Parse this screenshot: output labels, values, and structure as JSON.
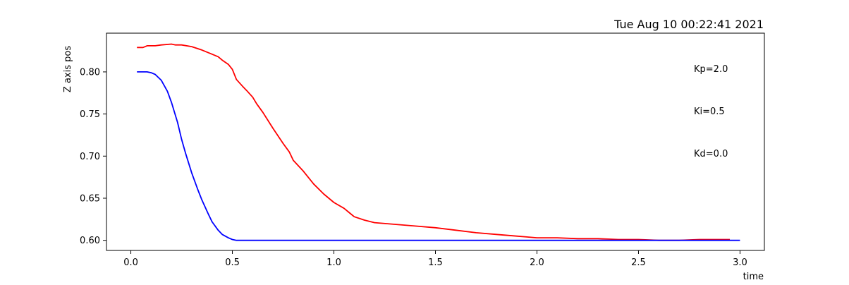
{
  "chart_data": {
    "type": "line",
    "title": "Tue Aug 10 00:22:41 2021",
    "xlabel": "time",
    "ylabel": "Z axis pos",
    "xlim": [
      -0.12,
      3.12
    ],
    "ylim": [
      0.588,
      0.846
    ],
    "x_ticks": [
      0.0,
      0.5,
      1.0,
      1.5,
      2.0,
      2.5,
      3.0
    ],
    "x_tick_labels": [
      "0.0",
      "0.5",
      "1.0",
      "1.5",
      "2.0",
      "2.5",
      "3.0"
    ],
    "y_ticks": [
      0.6,
      0.65,
      0.7,
      0.75,
      0.8
    ],
    "y_tick_labels": [
      "0.60",
      "0.65",
      "0.70",
      "0.75",
      "0.80"
    ],
    "grid": false,
    "annotations": [
      "Kp=2.0",
      "Ki=0.5",
      "Kd=0.0"
    ],
    "series": [
      {
        "color": "#ff0000",
        "x": [
          0.03,
          0.06,
          0.08,
          0.12,
          0.15,
          0.2,
          0.22,
          0.25,
          0.3,
          0.35,
          0.4,
          0.43,
          0.45,
          0.48,
          0.5,
          0.52,
          0.55,
          0.57,
          0.6,
          0.62,
          0.65,
          0.7,
          0.75,
          0.78,
          0.8,
          0.85,
          0.9,
          0.95,
          1.0,
          1.05,
          1.08,
          1.1,
          1.15,
          1.2,
          1.3,
          1.4,
          1.5,
          1.6,
          1.7,
          1.8,
          1.9,
          1.95,
          2.0,
          2.1,
          2.2,
          2.3,
          2.4,
          2.5,
          2.6,
          2.7,
          2.8,
          2.9,
          2.95
        ],
        "y": [
          0.829,
          0.829,
          0.831,
          0.831,
          0.832,
          0.833,
          0.832,
          0.832,
          0.83,
          0.826,
          0.821,
          0.818,
          0.814,
          0.809,
          0.803,
          0.791,
          0.783,
          0.778,
          0.77,
          0.762,
          0.752,
          0.733,
          0.715,
          0.705,
          0.695,
          0.682,
          0.667,
          0.655,
          0.645,
          0.638,
          0.632,
          0.628,
          0.624,
          0.621,
          0.619,
          0.617,
          0.615,
          0.612,
          0.609,
          0.607,
          0.605,
          0.604,
          0.603,
          0.603,
          0.602,
          0.602,
          0.601,
          0.601,
          0.6,
          0.6,
          0.601,
          0.601,
          0.601
        ]
      },
      {
        "color": "#0000ff",
        "x": [
          0.03,
          0.06,
          0.08,
          0.1,
          0.12,
          0.15,
          0.18,
          0.2,
          0.23,
          0.25,
          0.27,
          0.3,
          0.33,
          0.35,
          0.38,
          0.4,
          0.43,
          0.45,
          0.48,
          0.5,
          0.52,
          0.55,
          0.6,
          0.8,
          1.0,
          1.5,
          2.0,
          2.5,
          3.0
        ],
        "y": [
          0.8,
          0.8,
          0.8,
          0.799,
          0.797,
          0.79,
          0.777,
          0.764,
          0.74,
          0.72,
          0.703,
          0.68,
          0.66,
          0.648,
          0.632,
          0.622,
          0.612,
          0.607,
          0.603,
          0.601,
          0.6,
          0.6,
          0.6,
          0.6,
          0.6,
          0.6,
          0.6,
          0.6,
          0.6
        ]
      }
    ]
  }
}
